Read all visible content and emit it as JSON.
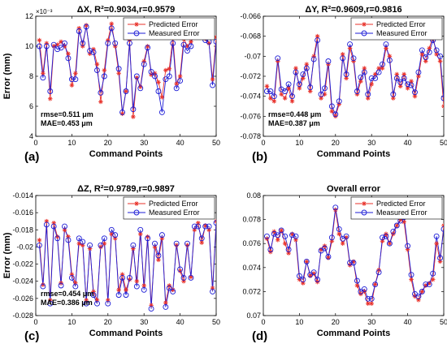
{
  "colors": {
    "predicted": "#e8312a",
    "measured": "#1c1cd6",
    "band": "#f0bde0",
    "axis": "#000000"
  },
  "chart_data": [
    {
      "type": "line",
      "panel_label": "(a)",
      "title": "ΔX, R²=0.9034,r=0.9579",
      "xlabel": "Command Points",
      "ylabel": "Error (mm)",
      "y_exponent": "×10⁻³",
      "xlim": [
        0,
        50
      ],
      "ylim": [
        4,
        12
      ],
      "xticks": [
        "0",
        "10",
        "20",
        "30",
        "40",
        "50"
      ],
      "yticks": [
        "4",
        "6",
        "8",
        "10",
        "12"
      ],
      "legend": [
        "Predicted Error",
        "Measured Error"
      ],
      "legend_position": "top-right",
      "stats": [
        "rmse=0.511 μm",
        "MAE=0.453 μm"
      ],
      "x": [
        1,
        2,
        3,
        4,
        5,
        6,
        7,
        8,
        9,
        10,
        11,
        12,
        13,
        14,
        15,
        16,
        17,
        18,
        19,
        20,
        21,
        22,
        23,
        24,
        25,
        26,
        27,
        28,
        29,
        30,
        31,
        32,
        33,
        34,
        35,
        36,
        37,
        38,
        39,
        40,
        41,
        42,
        43,
        44,
        45,
        46,
        47,
        48,
        49,
        50
      ],
      "series": [
        {
          "name": "Predicted Error",
          "marker": "asterisk",
          "values": [
            10.4,
            8.2,
            10.2,
            6.5,
            10.0,
            10.1,
            10.3,
            10.0,
            9.5,
            7.4,
            8.2,
            11.2,
            10.0,
            11.4,
            9.5,
            9.8,
            8.8,
            6.3,
            8.4,
            10.4,
            11.5,
            10.0,
            8.2,
            5.5,
            7.0,
            10.4,
            5.3,
            7.9,
            7.3,
            9.0,
            10.0,
            8.1,
            8.2,
            7.6,
            6.6,
            8.4,
            8.5,
            10.6,
            7.5,
            8.0,
            10.5,
            10.0,
            10.3,
            11.2,
            11.3,
            10.7,
            10.5,
            10.2,
            7.8,
            10.6
          ]
        },
        {
          "name": "Measured Error",
          "marker": "circle",
          "values": [
            10.0,
            7.9,
            10.0,
            7.0,
            10.1,
            9.8,
            9.9,
            10.2,
            9.2,
            7.8,
            7.8,
            11.0,
            10.2,
            11.3,
            9.7,
            9.6,
            8.4,
            6.9,
            8.0,
            10.2,
            11.2,
            10.2,
            8.5,
            5.6,
            7.0,
            10.2,
            5.8,
            8.0,
            7.2,
            8.8,
            9.9,
            8.3,
            8.0,
            7.0,
            5.6,
            7.8,
            8.0,
            10.2,
            7.2,
            7.7,
            10.1,
            9.7,
            10.0,
            11.5,
            11.4,
            10.8,
            10.4,
            10.3,
            7.4,
            10.3
          ]
        }
      ]
    },
    {
      "type": "line",
      "panel_label": "(b)",
      "title": "ΔY, R²=0.9609,r=0.9816",
      "xlabel": "Command Points",
      "ylabel": "",
      "xlim": [
        0,
        50
      ],
      "ylim": [
        -0.078,
        -0.066
      ],
      "xticks": [
        "0",
        "10",
        "20",
        "30",
        "40",
        "50"
      ],
      "yticks": [
        "-0.078",
        "-0.076",
        "-0.074",
        "-0.072",
        "-0.07",
        "-0.068",
        "-0.066"
      ],
      "legend": [
        "Predicted Error",
        "Measured Error"
      ],
      "legend_position": "top-right",
      "stats": [
        "rmse=0.448 μm",
        "MAE=0.387 μm"
      ],
      "x": [
        1,
        2,
        3,
        4,
        5,
        6,
        7,
        8,
        9,
        10,
        11,
        12,
        13,
        14,
        15,
        16,
        17,
        18,
        19,
        20,
        21,
        22,
        23,
        24,
        25,
        26,
        27,
        28,
        29,
        30,
        31,
        32,
        33,
        34,
        35,
        36,
        37,
        38,
        39,
        40,
        41,
        42,
        43,
        44,
        45,
        46,
        47,
        48,
        49,
        50
      ],
      "series": [
        {
          "name": "Predicted Error",
          "marker": "asterisk",
          "values": [
            -0.073,
            -0.0742,
            -0.0745,
            -0.0705,
            -0.0738,
            -0.0742,
            -0.0732,
            -0.0745,
            -0.0712,
            -0.0732,
            -0.0722,
            -0.0708,
            -0.0735,
            -0.07,
            -0.068,
            -0.0742,
            -0.0738,
            -0.0708,
            -0.0755,
            -0.076,
            -0.0748,
            -0.0698,
            -0.0722,
            -0.0692,
            -0.0705,
            -0.0738,
            -0.0725,
            -0.0712,
            -0.0742,
            -0.0728,
            -0.0718,
            -0.0712,
            -0.0712,
            -0.0692,
            -0.07,
            -0.0742,
            -0.0718,
            -0.073,
            -0.0718,
            -0.0732,
            -0.0725,
            -0.074,
            -0.072,
            -0.0698,
            -0.0705,
            -0.0692,
            -0.068,
            -0.0698,
            -0.0705,
            -0.075
          ]
        },
        {
          "name": "Measured Error",
          "marker": "circle",
          "values": [
            -0.0735,
            -0.0735,
            -0.074,
            -0.0702,
            -0.0733,
            -0.0735,
            -0.0728,
            -0.074,
            -0.0716,
            -0.0728,
            -0.0718,
            -0.0712,
            -0.0731,
            -0.0703,
            -0.0684,
            -0.0738,
            -0.0732,
            -0.0705,
            -0.075,
            -0.0758,
            -0.0745,
            -0.0702,
            -0.0718,
            -0.0688,
            -0.0702,
            -0.0735,
            -0.0721,
            -0.0716,
            -0.0738,
            -0.0722,
            -0.0722,
            -0.0716,
            -0.0708,
            -0.0688,
            -0.0704,
            -0.0738,
            -0.0722,
            -0.0726,
            -0.0722,
            -0.0728,
            -0.0729,
            -0.0736,
            -0.0716,
            -0.0694,
            -0.0701,
            -0.0696,
            -0.0684,
            -0.0694,
            -0.07,
            -0.0742
          ]
        }
      ]
    },
    {
      "type": "line",
      "panel_label": "(c)",
      "title": "ΔZ, R²=0.9789,r=0.9897",
      "xlabel": "Command Points",
      "ylabel": "Error (mm)",
      "xlim": [
        0,
        50
      ],
      "ylim": [
        -0.028,
        -0.014
      ],
      "xticks": [
        "0",
        "10",
        "20",
        "30",
        "40",
        "50"
      ],
      "yticks": [
        "-0.028",
        "-0.026",
        "-0.024",
        "-0.022",
        "-0.02",
        "-0.018",
        "-0.016",
        "-0.014"
      ],
      "legend": [
        "Predicted Error",
        "Measured Error"
      ],
      "legend_position": "top-right",
      "stats": [
        "rmse=0.454 μm",
        "MAE=0.386 μm"
      ],
      "x": [
        1,
        2,
        3,
        4,
        5,
        6,
        7,
        8,
        9,
        10,
        11,
        12,
        13,
        14,
        15,
        16,
        17,
        18,
        19,
        20,
        21,
        22,
        23,
        24,
        25,
        26,
        27,
        28,
        29,
        30,
        31,
        32,
        33,
        34,
        35,
        36,
        37,
        38,
        39,
        40,
        41,
        42,
        43,
        44,
        45,
        46,
        47,
        48,
        49,
        50
      ],
      "series": [
        {
          "name": "Predicted Error",
          "marker": "asterisk",
          "values": [
            -0.0192,
            -0.0244,
            -0.017,
            -0.0262,
            -0.0172,
            -0.0188,
            -0.0242,
            -0.018,
            -0.0188,
            -0.0232,
            -0.0242,
            -0.0196,
            -0.0198,
            -0.0262,
            -0.0202,
            -0.0252,
            -0.0262,
            -0.02,
            -0.0196,
            -0.0262,
            -0.0185,
            -0.019,
            -0.025,
            -0.0232,
            -0.025,
            -0.0238,
            -0.0202,
            -0.024,
            -0.0185,
            -0.0245,
            -0.0188,
            -0.0268,
            -0.02,
            -0.0215,
            -0.019,
            -0.0265,
            -0.0245,
            -0.025,
            -0.0198,
            -0.0228,
            -0.024,
            -0.0198,
            -0.0235,
            -0.018,
            -0.0172,
            -0.0195,
            -0.0175,
            -0.018,
            -0.0248,
            -0.017
          ]
        },
        {
          "name": "Measured Error",
          "marker": "circle",
          "values": [
            -0.0198,
            -0.0246,
            -0.0174,
            -0.0266,
            -0.0176,
            -0.019,
            -0.0245,
            -0.0176,
            -0.0192,
            -0.0236,
            -0.0246,
            -0.019,
            -0.0194,
            -0.0266,
            -0.0198,
            -0.0256,
            -0.0266,
            -0.0198,
            -0.019,
            -0.0266,
            -0.018,
            -0.0186,
            -0.0256,
            -0.0236,
            -0.0256,
            -0.0236,
            -0.0198,
            -0.0246,
            -0.018,
            -0.025,
            -0.019,
            -0.0272,
            -0.0196,
            -0.021,
            -0.0186,
            -0.027,
            -0.0248,
            -0.0252,
            -0.0196,
            -0.0226,
            -0.0236,
            -0.0196,
            -0.0236,
            -0.0176,
            -0.0176,
            -0.019,
            -0.0176,
            -0.0176,
            -0.0252,
            -0.0172
          ]
        }
      ]
    },
    {
      "type": "line",
      "panel_label": "(d)",
      "title": "Overall error",
      "xlabel": "Command Points",
      "ylabel": "",
      "xlim": [
        0,
        50
      ],
      "ylim": [
        0.07,
        0.08
      ],
      "xticks": [
        "0",
        "10",
        "20",
        "30",
        "40",
        "50"
      ],
      "yticks": [
        "0.07",
        "0.072",
        "0.074",
        "0.076",
        "0.078",
        "0.08"
      ],
      "legend": [
        "Predicted Error",
        "Measured Error"
      ],
      "legend_position": "top-right",
      "x": [
        1,
        2,
        3,
        4,
        5,
        6,
        7,
        8,
        9,
        10,
        11,
        12,
        13,
        14,
        15,
        16,
        17,
        18,
        19,
        20,
        21,
        22,
        23,
        24,
        25,
        26,
        27,
        28,
        29,
        30,
        31,
        32,
        33,
        34,
        35,
        36,
        37,
        38,
        39,
        40,
        41,
        42,
        43,
        44,
        45,
        46,
        47,
        48,
        49,
        50
      ],
      "series": [
        {
          "name": "Predicted Error",
          "marker": "asterisk",
          "values": [
            0.0764,
            0.0753,
            0.077,
            0.0763,
            0.0771,
            0.076,
            0.0752,
            0.0768,
            0.0763,
            0.073,
            0.0727,
            0.0745,
            0.0733,
            0.0735,
            0.0728,
            0.0755,
            0.0758,
            0.0748,
            0.0762,
            0.0788,
            0.0768,
            0.076,
            0.0765,
            0.0742,
            0.0745,
            0.0725,
            0.0718,
            0.072,
            0.071,
            0.071,
            0.0726,
            0.0738,
            0.0762,
            0.0768,
            0.076,
            0.0768,
            0.0775,
            0.078,
            0.0778,
            0.0755,
            0.073,
            0.0716,
            0.0713,
            0.072,
            0.0725,
            0.0727,
            0.073,
            0.076,
            0.0745,
            0.0775
          ]
        },
        {
          "name": "Measured Error",
          "marker": "circle",
          "values": [
            0.0766,
            0.0755,
            0.0768,
            0.0767,
            0.0771,
            0.0766,
            0.0755,
            0.0767,
            0.0766,
            0.0733,
            0.073,
            0.0745,
            0.0734,
            0.0736,
            0.073,
            0.0754,
            0.0756,
            0.0749,
            0.0765,
            0.079,
            0.0772,
            0.0764,
            0.0766,
            0.0744,
            0.0744,
            0.0729,
            0.072,
            0.0722,
            0.0714,
            0.0714,
            0.0726,
            0.0736,
            0.0765,
            0.0766,
            0.076,
            0.077,
            0.0775,
            0.0779,
            0.0782,
            0.0758,
            0.0734,
            0.0718,
            0.0716,
            0.072,
            0.0726,
            0.0726,
            0.0735,
            0.0766,
            0.0748,
            0.0772
          ]
        }
      ]
    }
  ]
}
